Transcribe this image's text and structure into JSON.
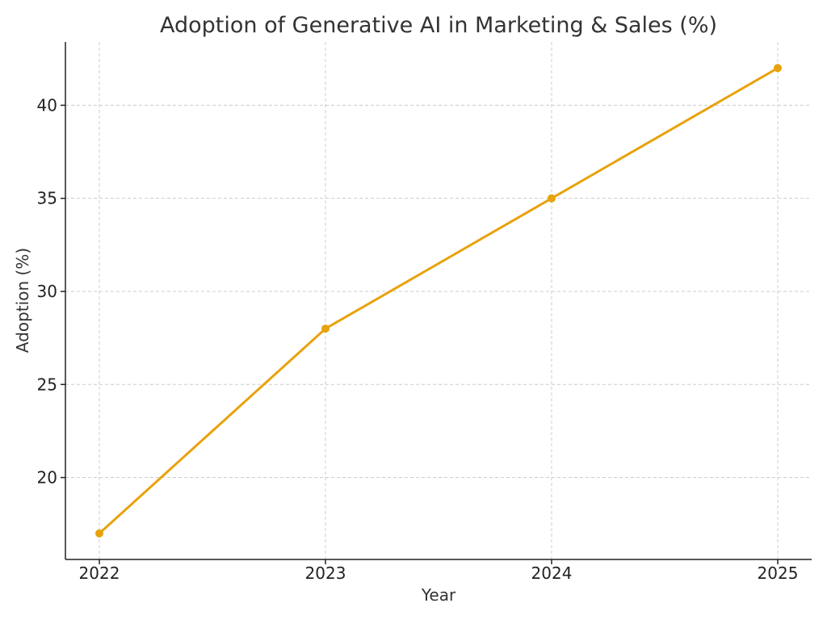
{
  "chart_data": {
    "type": "line",
    "title": "Adoption of Generative AI in Marketing & Sales (%)",
    "xlabel": "Year",
    "ylabel": "Adoption (%)",
    "x": [
      "2022",
      "2023",
      "2024",
      "2025"
    ],
    "series": [
      {
        "values": [
          17,
          28,
          35,
          42
        ],
        "color": "#E8A20C"
      }
    ],
    "xlim": [
      2021.85,
      2025.15
    ],
    "ylim": [
      15.6,
      43.4
    ],
    "yticks": [
      20,
      25,
      30,
      35,
      40
    ],
    "grid": true,
    "marker": "circle"
  }
}
